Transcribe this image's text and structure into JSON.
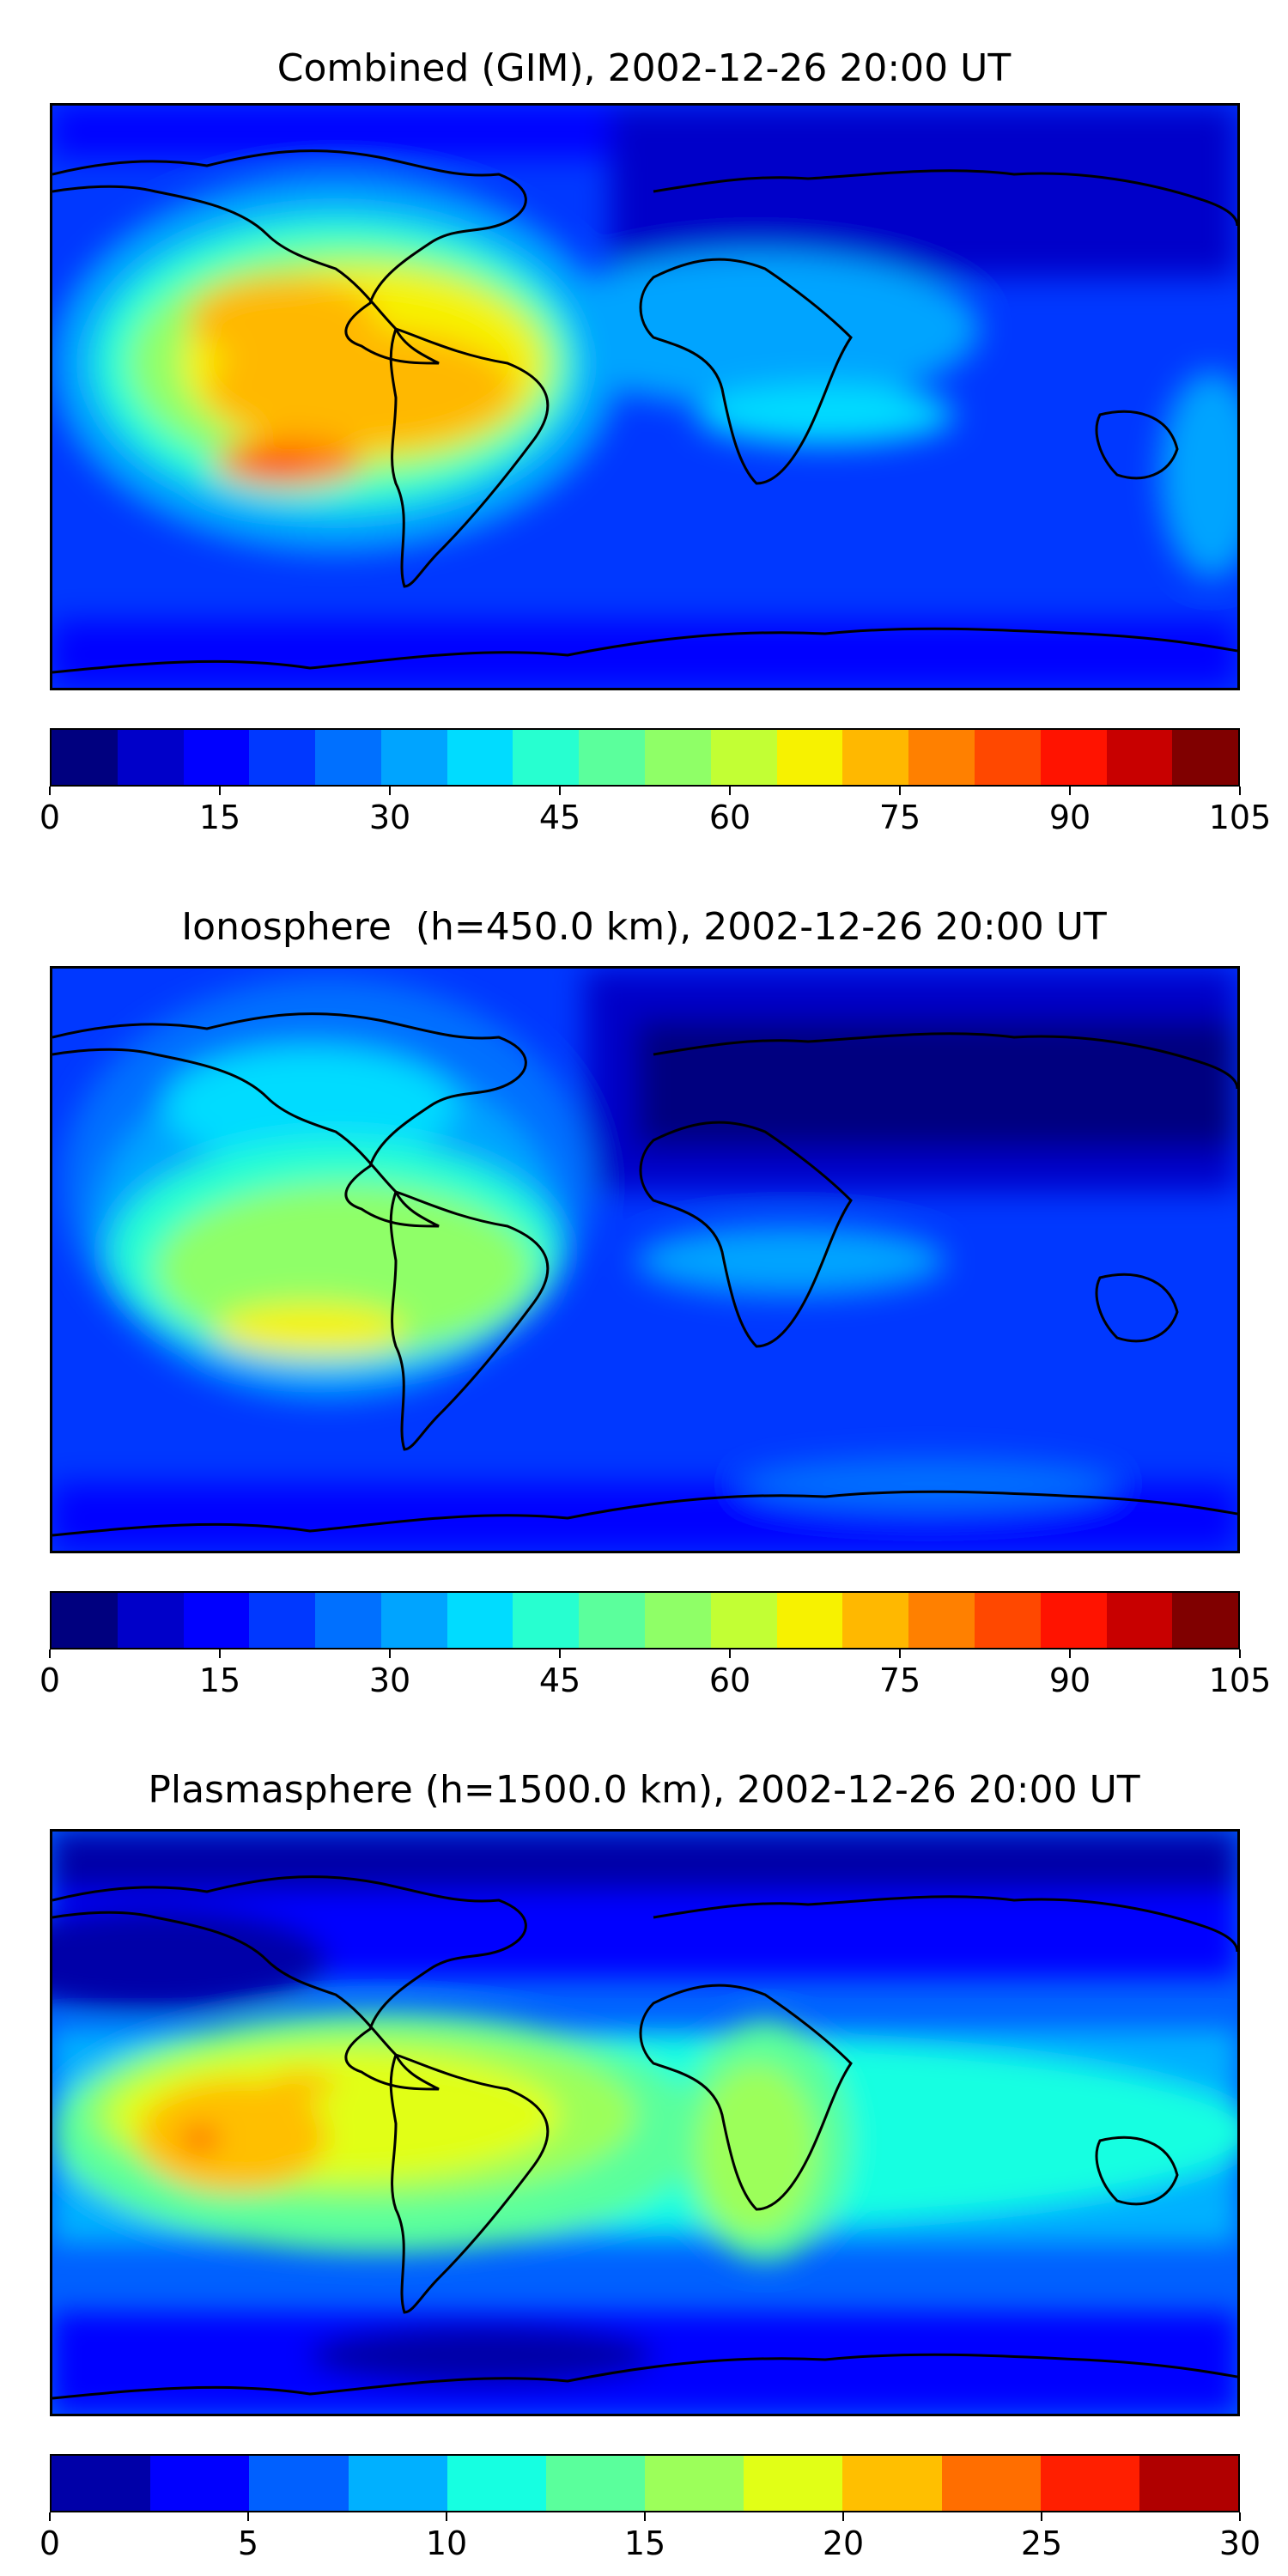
{
  "panels": [
    {
      "title": "Combined (GIM), 2002-12-26 20:00 UT",
      "colorbar": {
        "ticks": [
          "0",
          "15",
          "30",
          "45",
          "60",
          "75",
          "90",
          "105"
        ],
        "colors": [
          "#00007f",
          "#0000c9",
          "#0000ff",
          "#0038ff",
          "#0070ff",
          "#00a4ff",
          "#00dcff",
          "#27ffd0",
          "#5bff9c",
          "#8fff67",
          "#c2ff34",
          "#f7f200",
          "#ffb800",
          "#ff8000",
          "#ff4800",
          "#ff1300",
          "#c80000",
          "#800000"
        ]
      }
    },
    {
      "title": "Ionosphere  (h=450.0 km), 2002-12-26 20:00 UT",
      "colorbar": {
        "ticks": [
          "0",
          "15",
          "30",
          "45",
          "60",
          "75",
          "90",
          "105"
        ],
        "colors": [
          "#00007f",
          "#0000c9",
          "#0000ff",
          "#0038ff",
          "#0070ff",
          "#00a4ff",
          "#00dcff",
          "#27ffd0",
          "#5bff9c",
          "#8fff67",
          "#c2ff34",
          "#f7f200",
          "#ffb800",
          "#ff8000",
          "#ff4800",
          "#ff1300",
          "#c80000",
          "#800000"
        ]
      }
    },
    {
      "title": "Plasmasphere (h=1500.0 km), 2002-12-26 20:00 UT",
      "colorbar": {
        "ticks": [
          "0",
          "5",
          "10",
          "15",
          "20",
          "25",
          "30"
        ],
        "colors": [
          "#0000a8",
          "#0000ff",
          "#0060ff",
          "#00b0ff",
          "#16ffe1",
          "#5aff9c",
          "#9cff5a",
          "#e1ff16",
          "#ffbf00",
          "#ff6e00",
          "#ff1f00",
          "#b00000"
        ]
      }
    }
  ]
}
